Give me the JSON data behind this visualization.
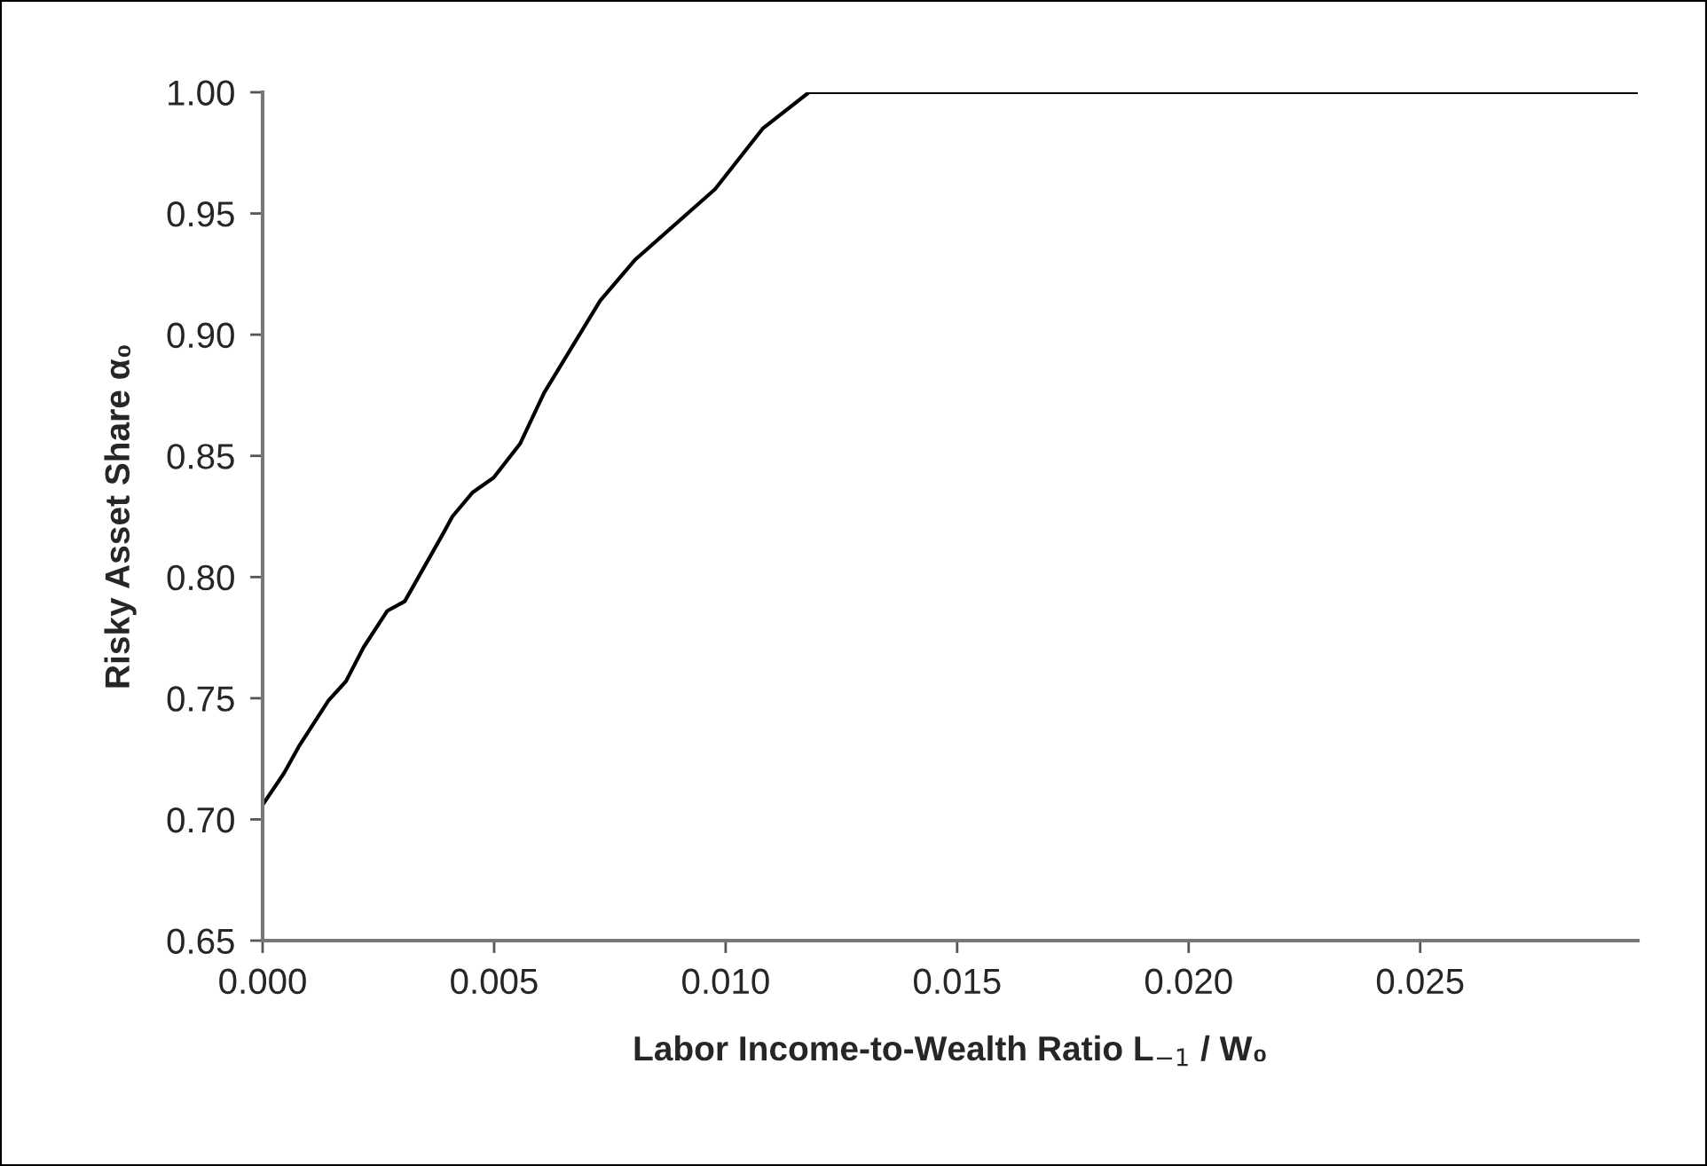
{
  "chart_data": {
    "type": "line",
    "xlabel": "Labor Income-to-Wealth Ratio L$_{−1}$ / W₀",
    "ylabel": "Risky Asset Share α₀",
    "x": [
      0,
      0.00046,
      0.00078,
      0.00142,
      0.0018,
      0.00218,
      0.00269,
      0.00307,
      0.0039,
      0.0041,
      0.00454,
      0.00499,
      0.00556,
      0.00608,
      0.00729,
      0.00805,
      0.00977,
      0.0108,
      0.0118,
      0.0297
    ],
    "series": [
      {
        "color": "#000000",
        "values": [
          0.706,
          0.719,
          0.73,
          0.749,
          0.757,
          0.771,
          0.786,
          0.79,
          0.818,
          0.825,
          0.835,
          0.841,
          0.855,
          0.876,
          0.914,
          0.931,
          0.96,
          0.985,
          1.0,
          1.0
        ]
      }
    ],
    "xlim": [
      0,
      0.0297
    ],
    "xticks": [
      {
        "value": 0,
        "label": "0.000"
      },
      {
        "value": 0.005,
        "label": "0.005"
      },
      {
        "value": 0.01,
        "label": "0.010"
      },
      {
        "value": 0.015,
        "label": "0.015"
      },
      {
        "value": 0.02,
        "label": "0.020"
      },
      {
        "value": 0.025,
        "label": "0.025"
      }
    ],
    "ylim": [
      0.65,
      1.0
    ],
    "yticks": [
      {
        "value": 0.65,
        "label": "0.65"
      },
      {
        "value": 0.7,
        "label": "0.70"
      },
      {
        "value": 0.75,
        "label": "0.75"
      },
      {
        "value": 0.8,
        "label": "0.80"
      },
      {
        "value": 0.85,
        "label": "0.85"
      },
      {
        "value": 0.9,
        "label": "0.90"
      },
      {
        "value": 0.95,
        "label": "0.95"
      },
      {
        "value": 1.0,
        "label": "1.00"
      }
    ],
    "grid": false,
    "legend": false,
    "marker": "none",
    "line_style": "solid"
  }
}
